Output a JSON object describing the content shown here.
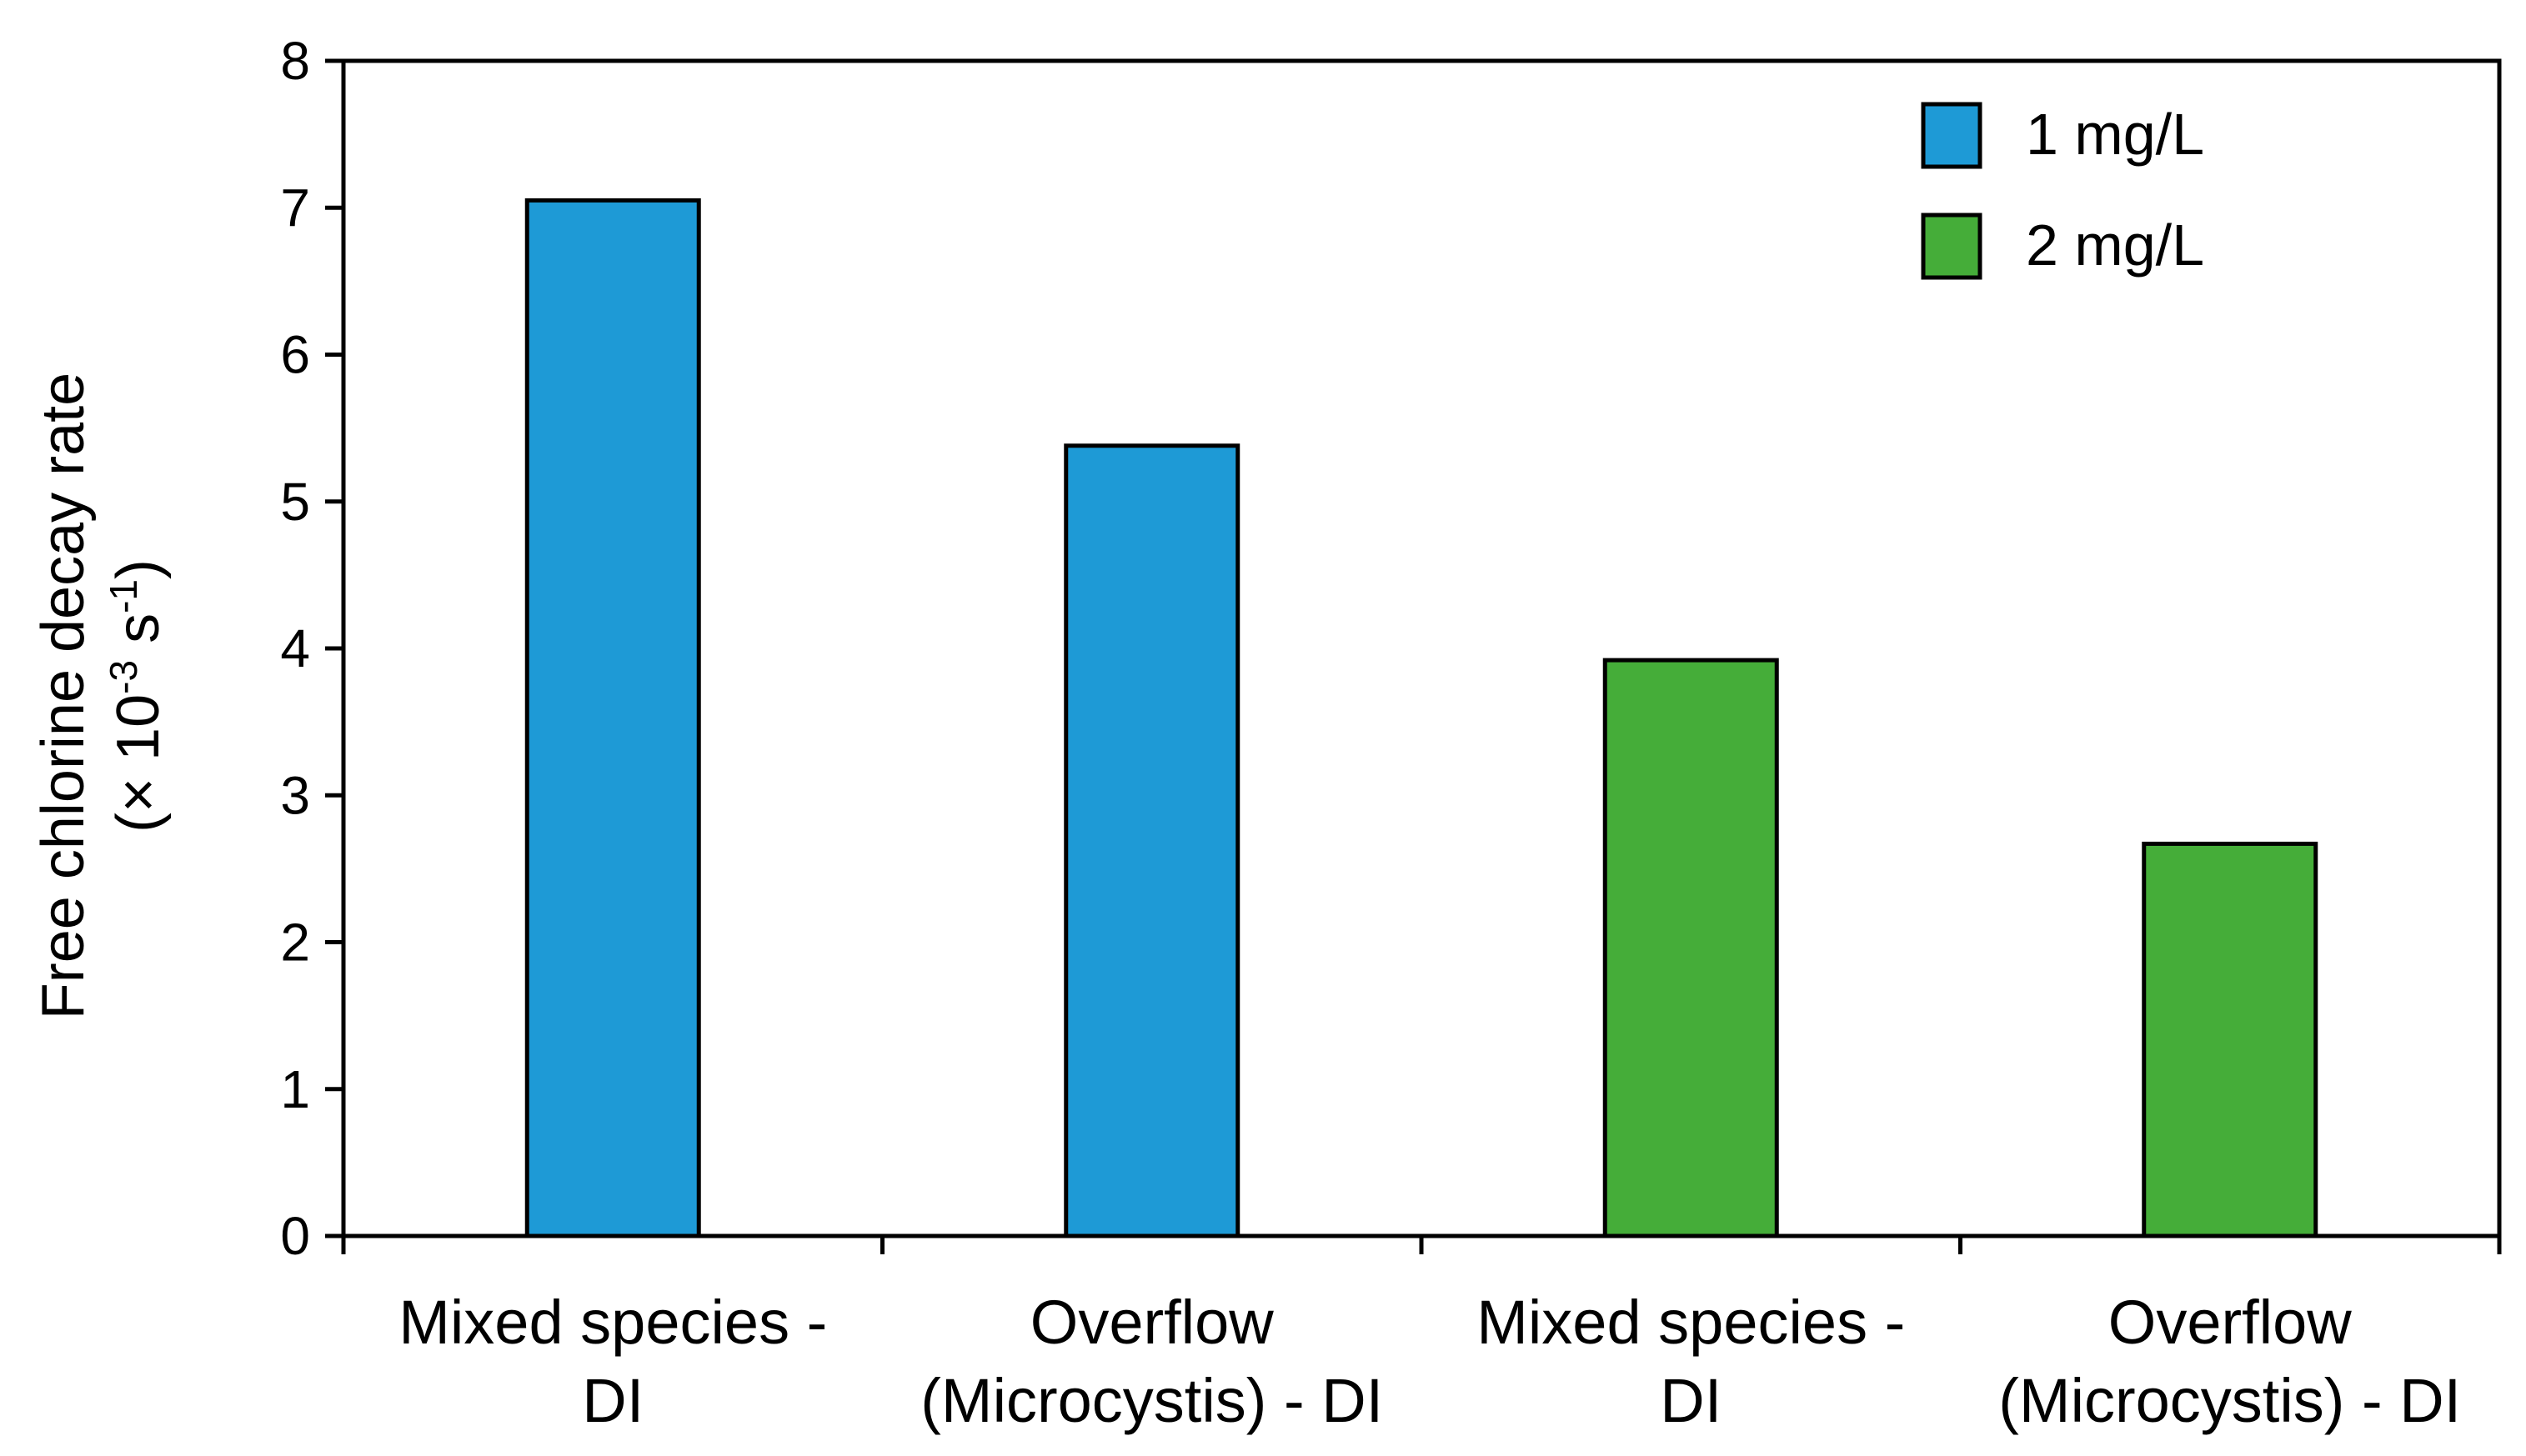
{
  "chart_data": {
    "type": "bar",
    "title": "",
    "xlabel": "",
    "ylabel": {
      "line1": "Free chlorine decay rate",
      "line2_prefix": "(× 10",
      "line2_exp1": "-3",
      "line2_mid": " s",
      "line2_exp2": "-1",
      "line2_suffix": ")"
    },
    "ylim": [
      0,
      8
    ],
    "yticks": [
      "0",
      "1",
      "2",
      "3",
      "4",
      "5",
      "6",
      "7",
      "8"
    ],
    "categories": [
      {
        "line1": "Mixed species -",
        "line2": "DI"
      },
      {
        "line1": "Overflow",
        "line2": "(Microcystis) - DI"
      },
      {
        "line1": "Mixed species -",
        "line2": "DI"
      },
      {
        "line1": "Overflow",
        "line2": "(Microcystis) - DI"
      }
    ],
    "values": [
      7.05,
      5.38,
      3.92,
      2.67
    ],
    "bar_series": [
      "1 mg/L",
      "1 mg/L",
      "2 mg/L",
      "2 mg/L"
    ],
    "legend": [
      {
        "name": "1 mg/L",
        "color": "#1e9ad6"
      },
      {
        "name": "2 mg/L",
        "color": "#45ad39"
      }
    ],
    "legend_position": "top-right",
    "grid": false
  }
}
